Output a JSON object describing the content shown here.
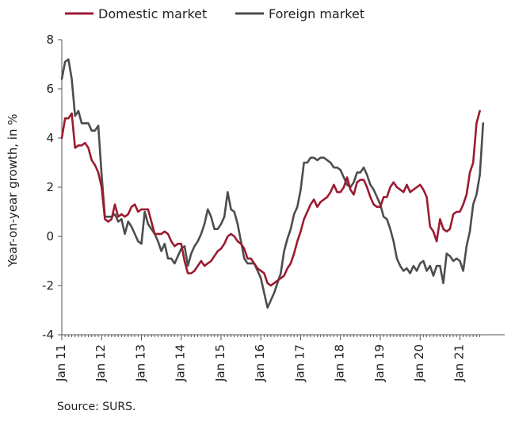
{
  "chart_data": {
    "type": "line",
    "title": "",
    "ylabel": "Year-on-year growth, in %",
    "xlabel": "",
    "ylim": [
      -4,
      8
    ],
    "yticks": [
      -4,
      -2,
      0,
      2,
      4,
      6,
      8
    ],
    "xticks": [
      "Jan 11",
      "Jan 12",
      "Jan 13",
      "Jan 14",
      "Jan 15",
      "Jan 16",
      "Jan 17",
      "Jan 18",
      "Jan 19",
      "Jan 20",
      "Jan 21"
    ],
    "grid": false,
    "legend_position": "top",
    "source": "Source: SURS.",
    "series": [
      {
        "name": "Domestic market",
        "color": "#9b1b30",
        "start": "2011-01",
        "values": [
          4.0,
          4.8,
          4.8,
          5.0,
          3.6,
          3.7,
          3.7,
          3.8,
          3.6,
          3.1,
          2.9,
          2.6,
          2.0,
          0.7,
          0.6,
          0.7,
          1.3,
          0.8,
          0.9,
          0.8,
          0.9,
          1.2,
          1.3,
          1.0,
          1.1,
          1.1,
          1.1,
          0.6,
          0.1,
          0.1,
          0.1,
          0.2,
          0.1,
          -0.2,
          -0.4,
          -0.3,
          -0.3,
          -1.0,
          -1.5,
          -1.5,
          -1.4,
          -1.2,
          -1.0,
          -1.2,
          -1.1,
          -1.0,
          -0.8,
          -0.6,
          -0.5,
          -0.3,
          0.0,
          0.1,
          0.0,
          -0.2,
          -0.3,
          -0.5,
          -0.9,
          -0.9,
          -1.1,
          -1.3,
          -1.4,
          -1.5,
          -1.9,
          -2.0,
          -1.9,
          -1.8,
          -1.7,
          -1.6,
          -1.3,
          -1.1,
          -0.7,
          -0.2,
          0.2,
          0.7,
          1.0,
          1.3,
          1.5,
          1.2,
          1.4,
          1.5,
          1.6,
          1.8,
          2.1,
          1.8,
          1.8,
          2.0,
          2.4,
          1.9,
          1.7,
          2.2,
          2.3,
          2.3,
          2.0,
          1.6,
          1.3,
          1.2,
          1.2,
          1.6,
          1.6,
          2.0,
          2.2,
          2.0,
          1.9,
          1.8,
          2.1,
          1.8,
          1.9,
          2.0,
          2.1,
          1.9,
          1.6,
          0.4,
          0.2,
          -0.2,
          0.7,
          0.3,
          0.2,
          0.3,
          0.9,
          1.0,
          1.0,
          1.3,
          1.7,
          2.6,
          3.0,
          4.6,
          5.1
        ]
      },
      {
        "name": "Foreign market",
        "color": "#4d4d4d",
        "start": "2011-01",
        "values": [
          6.4,
          7.1,
          7.2,
          6.4,
          4.9,
          5.1,
          4.6,
          4.6,
          4.6,
          4.3,
          4.3,
          4.5,
          2.5,
          0.8,
          0.8,
          0.8,
          0.9,
          0.6,
          0.7,
          0.1,
          0.6,
          0.4,
          0.1,
          -0.2,
          -0.3,
          1.0,
          0.5,
          0.3,
          0.1,
          -0.2,
          -0.6,
          -0.3,
          -0.9,
          -0.9,
          -1.1,
          -0.8,
          -0.5,
          -0.4,
          -1.2,
          -0.7,
          -0.4,
          -0.2,
          0.1,
          0.5,
          1.1,
          0.8,
          0.3,
          0.3,
          0.5,
          0.8,
          1.8,
          1.1,
          1.0,
          0.5,
          -0.2,
          -0.9,
          -1.1,
          -1.1,
          -1.1,
          -1.4,
          -1.7,
          -2.3,
          -2.9,
          -2.6,
          -2.3,
          -1.9,
          -1.5,
          -0.6,
          -0.1,
          0.3,
          0.9,
          1.2,
          1.9,
          3.0,
          3.0,
          3.2,
          3.2,
          3.1,
          3.2,
          3.2,
          3.1,
          3.0,
          2.8,
          2.8,
          2.7,
          2.4,
          2.1,
          2.0,
          2.2,
          2.6,
          2.6,
          2.8,
          2.5,
          2.1,
          1.9,
          1.6,
          1.3,
          0.8,
          0.7,
          0.3,
          -0.2,
          -0.9,
          -1.2,
          -1.4,
          -1.3,
          -1.5,
          -1.2,
          -1.4,
          -1.1,
          -1.0,
          -1.4,
          -1.2,
          -1.6,
          -1.2,
          -1.2,
          -1.9,
          -0.7,
          -0.8,
          -1.0,
          -0.9,
          -1.0,
          -1.4,
          -0.4,
          0.2,
          1.3,
          1.7,
          2.5,
          4.6
        ]
      }
    ]
  }
}
